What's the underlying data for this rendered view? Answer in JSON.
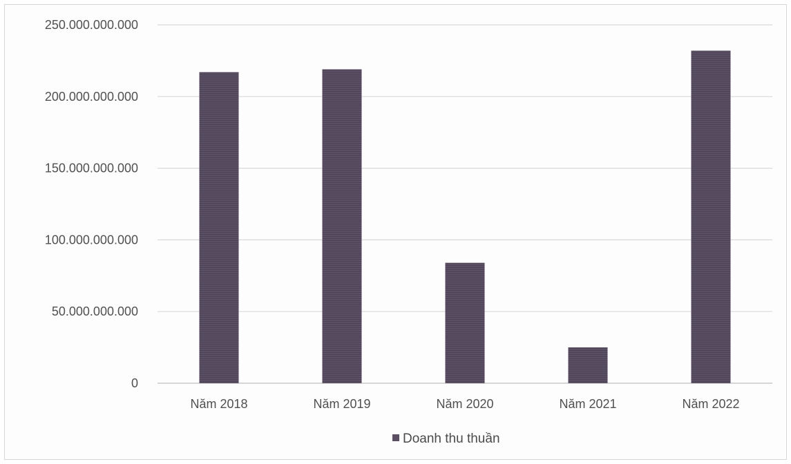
{
  "chart_data": {
    "type": "bar",
    "categories": [
      "Năm 2018",
      "Năm 2019",
      "Năm 2020",
      "Năm 2021",
      "Năm 2022"
    ],
    "series": [
      {
        "name": "Doanh thu thuần",
        "values": [
          217000000000,
          219000000000,
          84000000000,
          25000000000,
          232000000000
        ]
      }
    ],
    "ylim": [
      0,
      250000000000
    ],
    "yticks": [
      0,
      50000000000,
      100000000000,
      150000000000,
      200000000000,
      250000000000
    ],
    "ytick_labels": [
      "0",
      "50.000.000.000",
      "100.000.000.000",
      "150.000.000.000",
      "200.000.000.000",
      "250.000.000.000"
    ],
    "grid": true,
    "legend_position": "bottom",
    "colors": {
      "bar": "#5b4f63",
      "grid": "#d9d9d9",
      "axis": "#bfbfbf",
      "text": "#505050"
    }
  }
}
